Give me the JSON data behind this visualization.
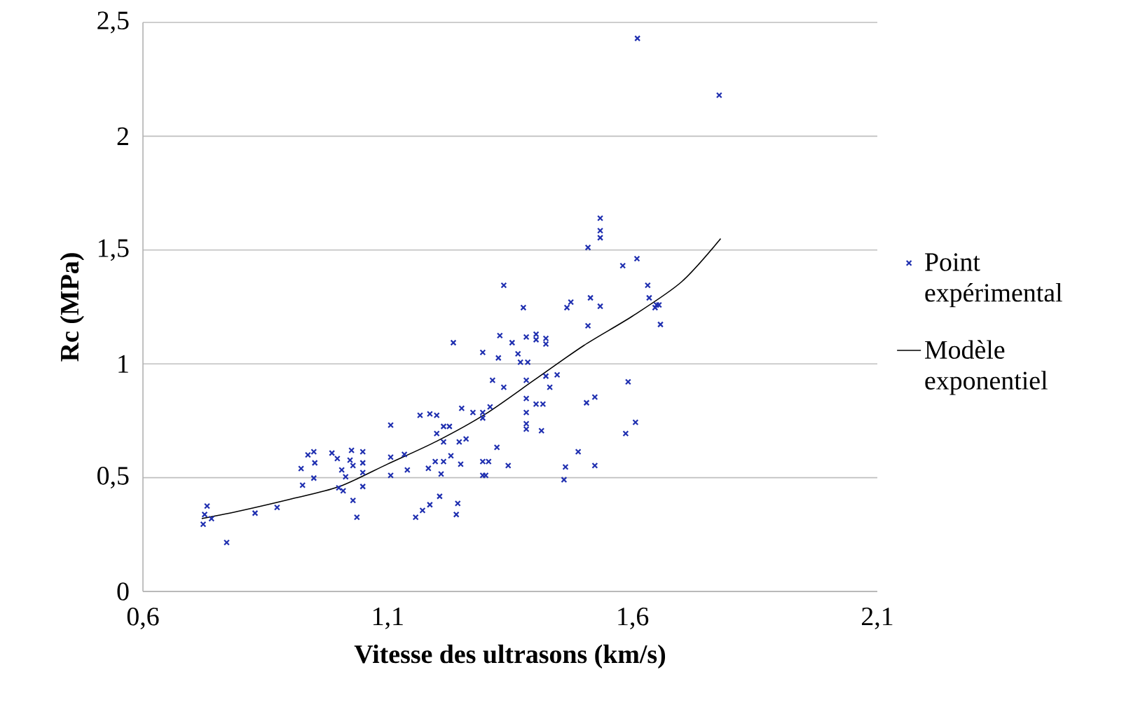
{
  "chart_data": {
    "type": "scatter",
    "xlabel": "Vitesse des ultrasons (km/s)",
    "ylabel": "Rc (MPa)",
    "xlim": [
      0.6,
      2.1
    ],
    "ylim": [
      0,
      2.5
    ],
    "xticks": [
      {
        "value": 0.6,
        "label": "0,6"
      },
      {
        "value": 1.1,
        "label": "1,1"
      },
      {
        "value": 1.6,
        "label": "1,6"
      },
      {
        "value": 2.1,
        "label": "2,1"
      }
    ],
    "yticks": [
      0,
      {
        "value": 0.5,
        "label": "0,5"
      },
      1,
      {
        "value": 1.5,
        "label": "1,5"
      },
      2,
      {
        "value": 2.5,
        "label": "2,5"
      }
    ],
    "grid": "y",
    "legend": "right",
    "marker": "cross",
    "series": [
      {
        "name": "Point expérimental",
        "color": "#1f2fb0",
        "x": [
          0.731,
          0.726,
          0.74,
          0.723,
          0.771,
          0.829,
          0.874,
          0.923,
          0.937,
          0.949,
          0.951,
          0.949,
          0.926,
          0.986,
          0.997,
          1.006,
          1.026,
          1.023,
          1.029,
          1.014,
          1.049,
          1.049,
          1.049,
          1.0,
          1.009,
          1.029,
          1.037,
          1.049,
          1.337,
          1.377,
          1.234,
          1.329,
          1.354,
          1.383,
          1.403,
          1.403,
          1.423,
          1.423,
          1.294,
          1.326,
          1.366,
          1.371,
          1.386,
          1.314,
          1.337,
          1.383,
          1.423,
          1.431,
          1.383,
          1.403,
          1.417,
          1.251,
          1.274,
          1.294,
          1.309,
          1.294,
          1.383,
          1.383,
          1.383,
          1.414,
          1.106,
          1.166,
          1.186,
          1.2,
          1.214,
          1.226,
          1.2,
          1.214,
          1.246,
          1.26,
          1.323,
          1.106,
          1.134,
          1.197,
          1.214,
          1.229,
          1.249,
          1.294,
          1.306,
          1.346,
          1.14,
          1.183,
          1.209,
          1.106,
          1.294,
          1.3,
          1.206,
          1.186,
          1.171,
          1.157,
          1.243,
          1.24,
          1.534,
          1.534,
          1.534,
          1.509,
          1.609,
          1.58,
          1.631,
          1.634,
          1.649,
          1.654,
          1.646,
          1.657,
          1.514,
          1.534,
          1.474,
          1.466,
          1.509,
          1.446,
          1.591,
          1.523,
          1.506,
          1.606,
          1.586,
          1.489,
          1.463,
          1.523,
          1.46,
          1.61,
          1.777
        ],
        "values": [
          0.375,
          0.338,
          0.32,
          0.295,
          0.215,
          0.344,
          0.369,
          0.54,
          0.6,
          0.614,
          0.565,
          0.498,
          0.467,
          0.608,
          0.584,
          0.534,
          0.62,
          0.577,
          0.553,
          0.504,
          0.614,
          0.565,
          0.522,
          0.455,
          0.442,
          0.4,
          0.326,
          0.461,
          1.345,
          1.247,
          1.093,
          1.124,
          1.093,
          1.118,
          1.13,
          1.106,
          1.112,
          1.087,
          1.05,
          1.026,
          1.044,
          1.007,
          1.007,
          0.928,
          0.897,
          0.928,
          0.946,
          0.897,
          0.848,
          0.823,
          0.823,
          0.805,
          0.786,
          0.786,
          0.811,
          0.762,
          0.786,
          0.737,
          0.713,
          0.706,
          0.731,
          0.774,
          0.78,
          0.774,
          0.725,
          0.725,
          0.694,
          0.657,
          0.657,
          0.67,
          0.633,
          0.59,
          0.602,
          0.571,
          0.571,
          0.596,
          0.559,
          0.571,
          0.571,
          0.553,
          0.534,
          0.541,
          0.516,
          0.51,
          0.51,
          0.51,
          0.418,
          0.381,
          0.356,
          0.326,
          0.387,
          0.338,
          1.64,
          1.585,
          1.554,
          1.511,
          1.462,
          1.431,
          1.345,
          1.29,
          1.259,
          1.259,
          1.247,
          1.173,
          1.29,
          1.253,
          1.271,
          1.247,
          1.167,
          0.952,
          0.921,
          0.854,
          0.829,
          0.743,
          0.694,
          0.614,
          0.547,
          0.553,
          0.491,
          2.43,
          2.18
        ]
      },
      {
        "name": "Modèle exponentiel",
        "type": "line",
        "color": "#000000",
        "marker": "none",
        "line_style": "solid",
        "x": [
          0.72,
          0.8,
          0.9,
          1.0,
          1.1,
          1.2,
          1.3,
          1.4,
          1.5,
          1.6,
          1.7,
          1.78
        ],
        "values": [
          0.32,
          0.355,
          0.405,
          0.46,
          0.56,
          0.66,
          0.78,
          0.93,
          1.08,
          1.21,
          1.36,
          1.55
        ]
      }
    ]
  }
}
